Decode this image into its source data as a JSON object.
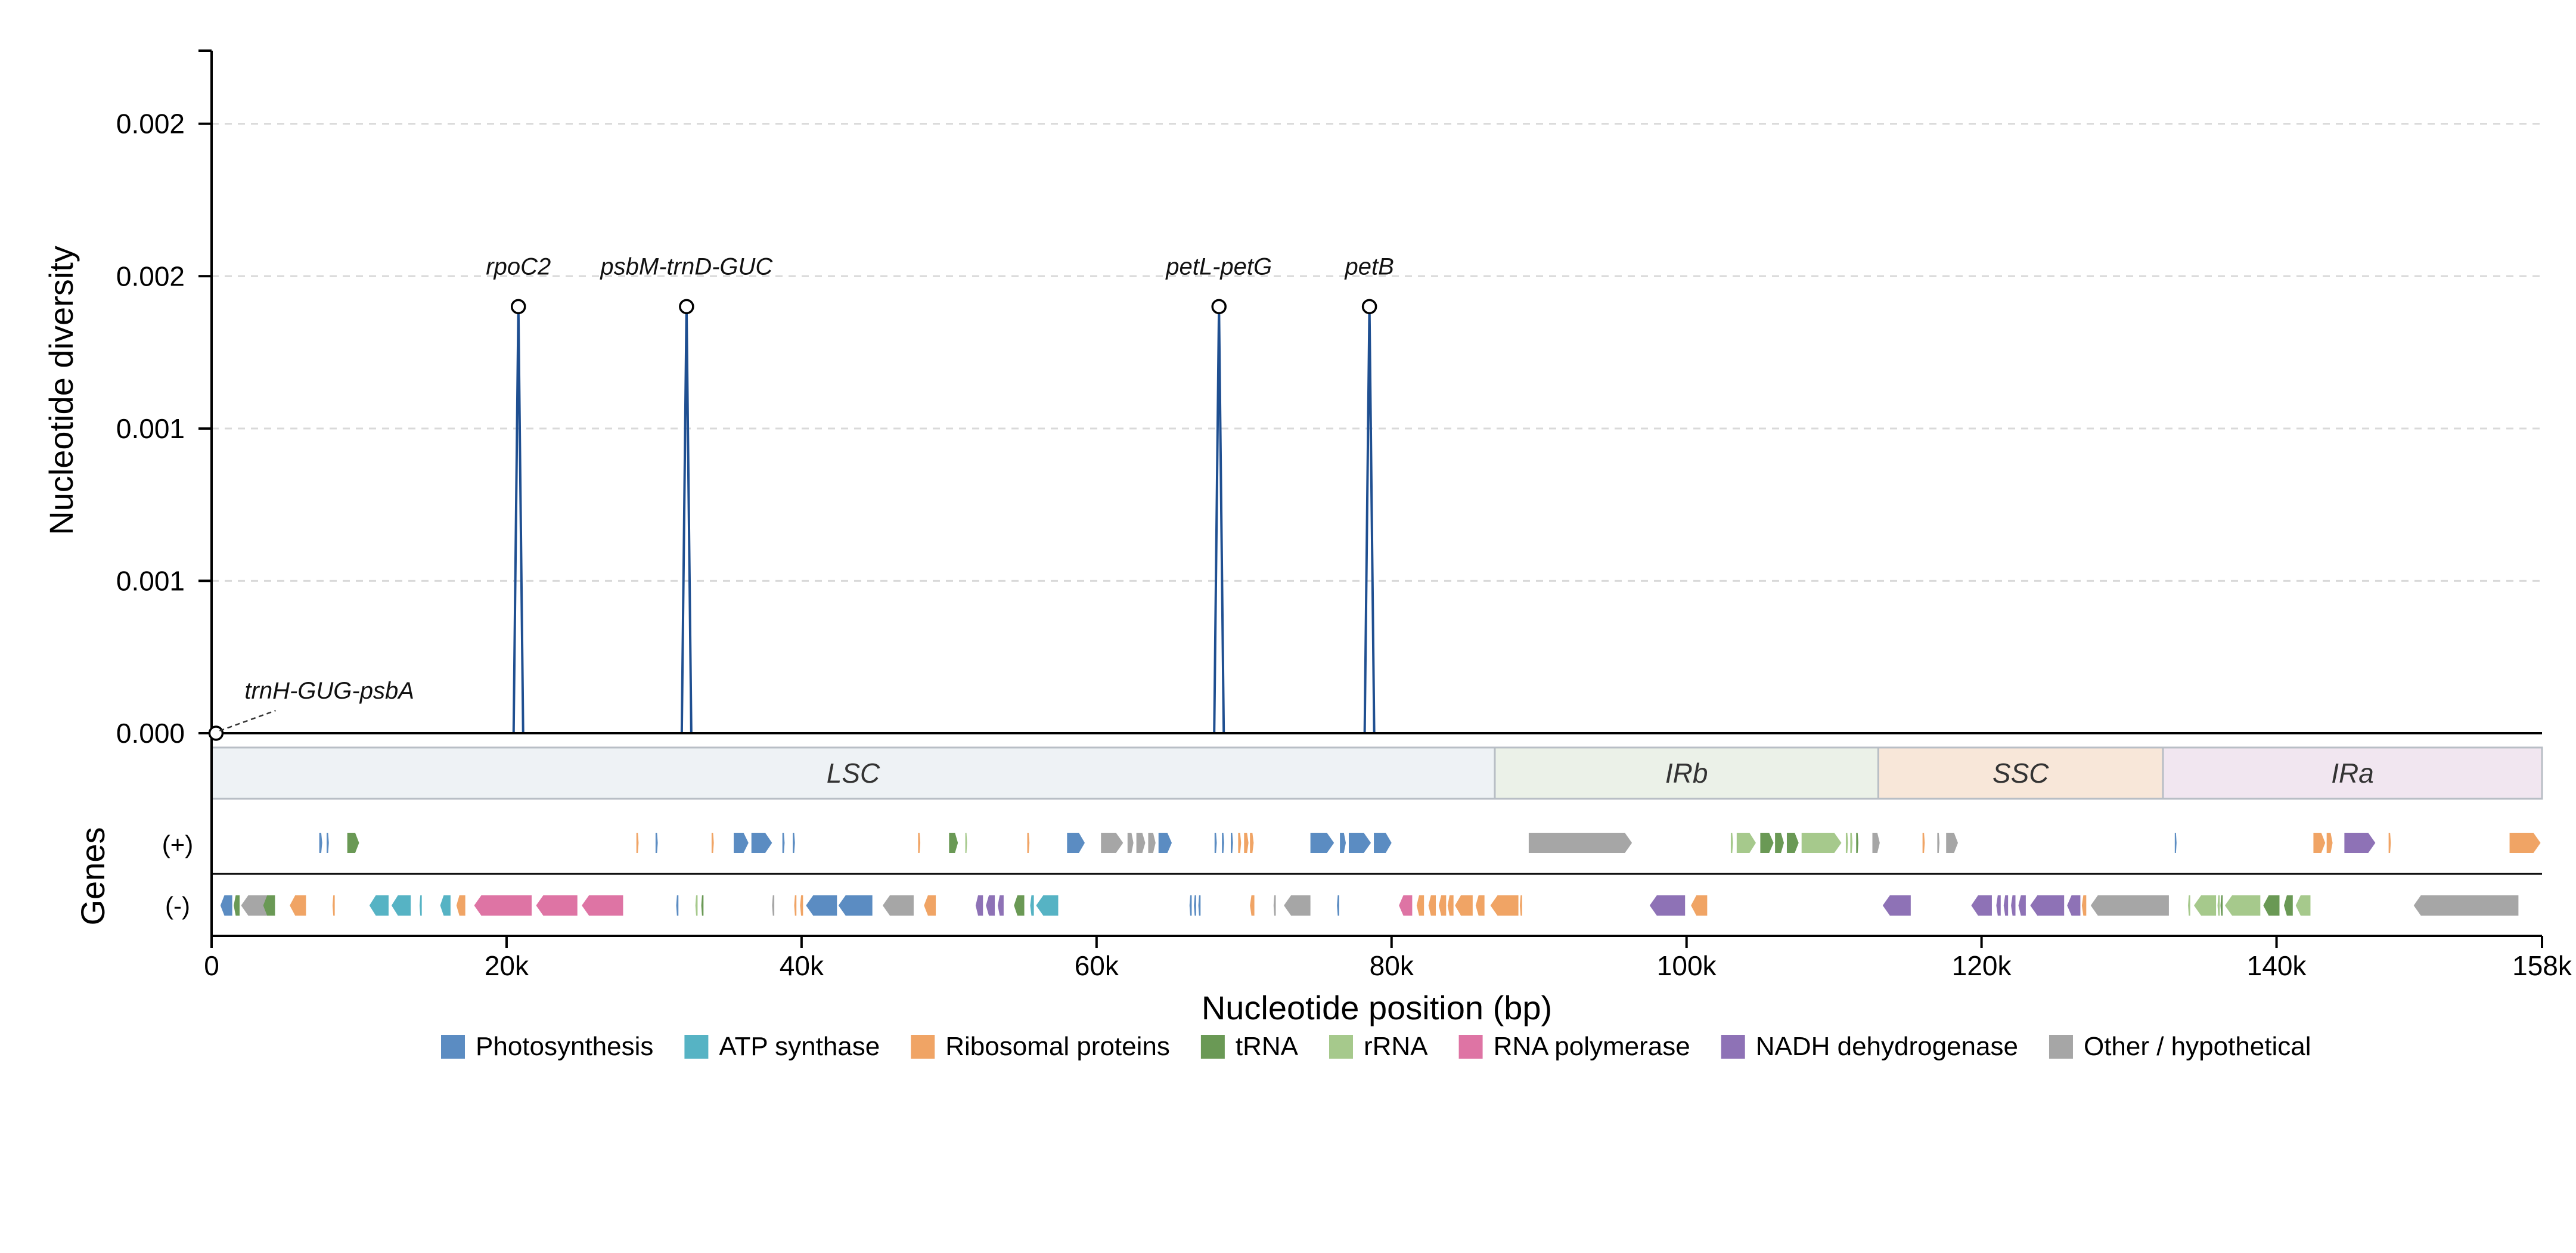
{
  "chart_data": {
    "type": "line",
    "xlabel": "Nucleotide position (bp)",
    "ylabel": "Nucleotide diversity",
    "genes_label": "Genes",
    "strand_plus_label": "(+)",
    "strand_minus_label": "(-)",
    "xlim": [
      0,
      158000
    ],
    "ylim": [
      0,
      0.00224
    ],
    "grid": true,
    "x_ticks": [
      {
        "value": 0,
        "label": "0"
      },
      {
        "value": 20000,
        "label": "20k"
      },
      {
        "value": 40000,
        "label": "40k"
      },
      {
        "value": 60000,
        "label": "60k"
      },
      {
        "value": 80000,
        "label": "80k"
      },
      {
        "value": 100000,
        "label": "100k"
      },
      {
        "value": 120000,
        "label": "120k"
      },
      {
        "value": 140000,
        "label": "140k"
      },
      {
        "value": 158000,
        "label": "158k"
      }
    ],
    "y_ticks": [
      {
        "value": 0,
        "label": "0.000"
      },
      {
        "value": 0.0005,
        "label": "0.001"
      },
      {
        "value": 0.001,
        "label": "0.001"
      },
      {
        "value": 0.0015,
        "label": "0.002"
      },
      {
        "value": 0.002,
        "label": "0.002"
      }
    ],
    "series": [
      {
        "values": [
          {
            "x": 20800,
            "y": 0.0014
          },
          {
            "x": 32200,
            "y": 0.0014
          },
          {
            "x": 68300,
            "y": 0.0014
          },
          {
            "x": 78500,
            "y": 0.0014
          }
        ]
      }
    ],
    "peaks": [
      {
        "label": "rpoC2",
        "x": 20800,
        "y": 0.0014
      },
      {
        "label": "psbM-trnD-GUC",
        "x": 32200,
        "y": 0.0014
      },
      {
        "label": "petL-petG",
        "x": 68300,
        "y": 0.0014
      },
      {
        "label": "petB",
        "x": 78500,
        "y": 0.0014
      },
      {
        "label": "trnH-GUG-psbA",
        "x": 300,
        "y": 0
      }
    ],
    "regions": [
      {
        "name": "LSC",
        "start": 0,
        "end": 87000,
        "color": "#eef2f5"
      },
      {
        "name": "IRb",
        "start": 87000,
        "end": 113000,
        "color": "#ebf1e8"
      },
      {
        "name": "SSC",
        "start": 113000,
        "end": 132300,
        "color": "#f8e7d9"
      },
      {
        "name": "IRa",
        "start": 132300,
        "end": 158000,
        "color": "#f1e6f0"
      }
    ],
    "categories": [
      {
        "key": "photo",
        "label": "Photosynthesis",
        "color": "#5b8cc2"
      },
      {
        "key": "atp",
        "label": "ATP synthase",
        "color": "#56b3c4"
      },
      {
        "key": "ribo",
        "label": "Ribosomal proteins",
        "color": "#f0a465"
      },
      {
        "key": "trna",
        "label": "tRNA",
        "color": "#6a9955"
      },
      {
        "key": "rrna",
        "label": "rRNA",
        "color": "#a6c98c"
      },
      {
        "key": "rnap",
        "label": "RNA polymerase",
        "color": "#de74a4"
      },
      {
        "key": "ndh",
        "label": "NADH dehydrogenase",
        "color": "#8e72b6"
      },
      {
        "key": "other",
        "label": "Other / hypothetical",
        "color": "#a6a6a6"
      }
    ],
    "genes_plus": [
      [
        "photo",
        7300,
        7500
      ],
      [
        "photo",
        7800,
        7950
      ],
      [
        "trna",
        9200,
        10000
      ],
      [
        "ribo",
        28800,
        28950
      ],
      [
        "photo",
        30100,
        30250
      ],
      [
        "ribo",
        33900,
        34050
      ],
      [
        "photo",
        35400,
        36400
      ],
      [
        "photo",
        36600,
        38000
      ],
      [
        "photo",
        38700,
        38850
      ],
      [
        "photo",
        39400,
        39550
      ],
      [
        "ribo",
        47900,
        48050
      ],
      [
        "trna",
        50000,
        50600
      ],
      [
        "rrna",
        51100,
        51200
      ],
      [
        "ribo",
        55300,
        55450
      ],
      [
        "photo",
        58000,
        59200
      ],
      [
        "other",
        60300,
        61800
      ],
      [
        "other",
        62100,
        62500
      ],
      [
        "other",
        62700,
        63300
      ],
      [
        "other",
        63500,
        64000
      ],
      [
        "photo",
        64200,
        65100
      ],
      [
        "photo",
        68000,
        68150
      ],
      [
        "photo",
        68500,
        68650
      ],
      [
        "photo",
        69100,
        69250
      ],
      [
        "ribo",
        69600,
        69800
      ],
      [
        "ribo",
        70000,
        70300
      ],
      [
        "ribo",
        70400,
        70650
      ],
      [
        "photo",
        74500,
        76100
      ],
      [
        "photo",
        76500,
        76900
      ],
      [
        "photo",
        77100,
        78600
      ],
      [
        "photo",
        78800,
        80000
      ],
      [
        "other",
        89300,
        96300
      ],
      [
        "rrna",
        103000,
        103150
      ],
      [
        "rrna",
        103400,
        104700
      ],
      [
        "trna",
        105000,
        105900
      ],
      [
        "trna",
        106000,
        106600
      ],
      [
        "trna",
        106800,
        107600
      ],
      [
        "rrna",
        107800,
        110500
      ],
      [
        "rrna",
        110800,
        110950
      ],
      [
        "rrna",
        111100,
        111250
      ],
      [
        "trna",
        111500,
        111650
      ],
      [
        "other",
        112600,
        113100
      ],
      [
        "ribo",
        116000,
        116150
      ],
      [
        "other",
        117000,
        117150
      ],
      [
        "other",
        117600,
        118400
      ],
      [
        "photo",
        133100,
        133200
      ],
      [
        "ribo",
        142500,
        143300
      ],
      [
        "ribo",
        143400,
        143800
      ],
      [
        "ndh",
        144600,
        146700
      ],
      [
        "ribo",
        147600,
        147750
      ],
      [
        "ribo",
        155800,
        157900
      ]
    ],
    "genes_minus": [
      [
        "photo",
        600,
        1400
      ],
      [
        "trna",
        1500,
        1900
      ],
      [
        "other",
        2000,
        3800
      ],
      [
        "trna",
        3500,
        4300
      ],
      [
        "ribo",
        5300,
        6400
      ],
      [
        "ribo",
        8200,
        8350
      ],
      [
        "atp",
        10700,
        12000
      ],
      [
        "atp",
        12200,
        13500
      ],
      [
        "atp",
        14100,
        14250
      ],
      [
        "atp",
        15500,
        16200
      ],
      [
        "ribo",
        16600,
        17200
      ],
      [
        "rnap",
        17800,
        21700
      ],
      [
        "rnap",
        22000,
        24800
      ],
      [
        "rnap",
        25100,
        27900
      ],
      [
        "photo",
        31500,
        31650
      ],
      [
        "rrna",
        32800,
        32950
      ],
      [
        "trna",
        33200,
        33350
      ],
      [
        "other",
        38000,
        38150
      ],
      [
        "ribo",
        39500,
        39650
      ],
      [
        "ribo",
        39900,
        40100
      ],
      [
        "photo",
        40300,
        42400
      ],
      [
        "photo",
        42500,
        44800
      ],
      [
        "other",
        45500,
        47600
      ],
      [
        "ribo",
        48300,
        49100
      ],
      [
        "ndh",
        51800,
        52300
      ],
      [
        "ndh",
        52500,
        53100
      ],
      [
        "ndh",
        53300,
        53700
      ],
      [
        "trna",
        54400,
        55100
      ],
      [
        "atp",
        55500,
        55750
      ],
      [
        "atp",
        55900,
        57400
      ],
      [
        "photo",
        66300,
        66450
      ],
      [
        "photo",
        66600,
        66750
      ],
      [
        "photo",
        66900,
        67050
      ],
      [
        "ribo",
        70400,
        70700
      ],
      [
        "other",
        72000,
        72150
      ],
      [
        "other",
        72700,
        74500
      ],
      [
        "photo",
        76300,
        76450
      ],
      [
        "rnap",
        80500,
        81400
      ],
      [
        "ribo",
        81700,
        82200
      ],
      [
        "ribo",
        82500,
        83000
      ],
      [
        "ribo",
        83200,
        83700
      ],
      [
        "ribo",
        83800,
        84200
      ],
      [
        "ribo",
        84300,
        85500
      ],
      [
        "ribo",
        85700,
        86300
      ],
      [
        "ribo",
        86700,
        88600
      ],
      [
        "ribo",
        88700,
        88850
      ],
      [
        "ndh",
        97500,
        99900
      ],
      [
        "ribo",
        100300,
        101400
      ],
      [
        "ndh",
        113300,
        115200
      ],
      [
        "ndh",
        119300,
        120700
      ],
      [
        "ndh",
        121000,
        121300
      ],
      [
        "ndh",
        121500,
        121800
      ],
      [
        "ndh",
        122000,
        122300
      ],
      [
        "ndh",
        122500,
        123000
      ],
      [
        "ndh",
        123300,
        125600
      ],
      [
        "ndh",
        125800,
        126700
      ],
      [
        "ribo",
        126800,
        127100
      ],
      [
        "other",
        127400,
        132700
      ],
      [
        "rrna",
        134000,
        134150
      ],
      [
        "rrna",
        134400,
        135900
      ],
      [
        "rrna",
        136000,
        136150
      ],
      [
        "trna",
        136200,
        136350
      ],
      [
        "rrna",
        136500,
        138900
      ],
      [
        "trna",
        139100,
        140200
      ],
      [
        "trna",
        140500,
        141100
      ],
      [
        "rrna",
        141300,
        142300
      ],
      [
        "other",
        149300,
        156400
      ]
    ]
  }
}
